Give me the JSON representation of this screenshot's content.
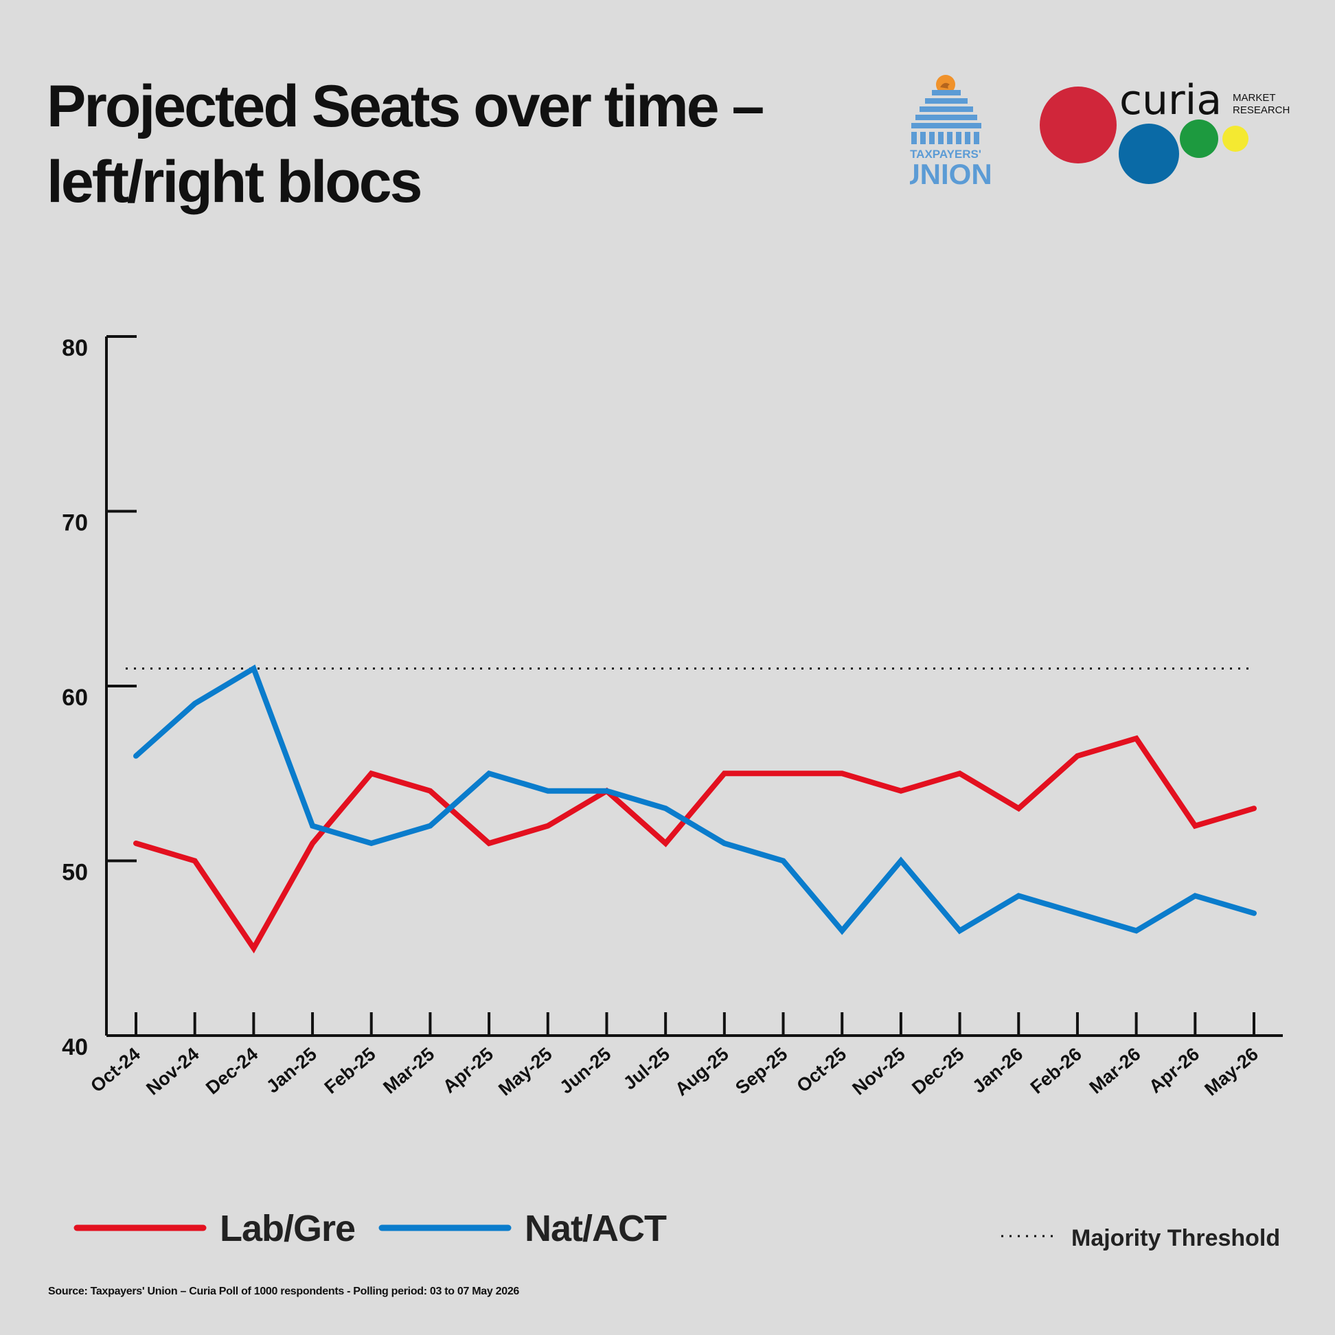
{
  "header": {
    "title_line1": "Projected Seats over time –",
    "title_line2": "left/right blocs"
  },
  "logos": {
    "taxpayers_union": {
      "line1": "TAXPAYERS'",
      "line2": "UNION",
      "color": "#5b9bd5",
      "accent": "#f0922b"
    },
    "curia": {
      "name": "curia",
      "line1": "MARKET",
      "line2": "RESEARCH",
      "dot_colors": [
        "#d0263a",
        "#0a6aa6",
        "#1d9a3f",
        "#f4e931"
      ]
    }
  },
  "chart_data": {
    "type": "line",
    "categories": [
      "Oct-24",
      "Nov-24",
      "Dec-24",
      "Jan-25",
      "Feb-25",
      "Mar-25",
      "Apr-25",
      "May-25",
      "Jun-25",
      "Jul-25",
      "Aug-25",
      "Sep-25",
      "Oct-25",
      "Nov-25",
      "Dec-25",
      "Jan-26",
      "Feb-26",
      "Mar-26",
      "Apr-26",
      "May-26"
    ],
    "series": [
      {
        "name": "Lab/Gre",
        "color": "#e3101f",
        "values": [
          51,
          50,
          45,
          51,
          55,
          54,
          51,
          52,
          54,
          51,
          55,
          55,
          55,
          54,
          55,
          53,
          56,
          57,
          52,
          53
        ]
      },
      {
        "name": "Nat/ACT",
        "color": "#0a7ccc",
        "values": [
          56,
          59,
          61,
          52,
          51,
          52,
          55,
          54,
          54,
          53,
          51,
          50,
          46,
          50,
          46,
          48,
          47,
          46,
          48,
          47
        ]
      }
    ],
    "threshold": {
      "name": "Majority Threshold",
      "value": 61,
      "style": "dotted"
    },
    "ylim": [
      40,
      80
    ],
    "yticks": [
      40,
      50,
      60,
      70,
      80
    ],
    "xlabel": "",
    "ylabel": "",
    "grid": false,
    "legend_position": "bottom"
  },
  "footer": {
    "source": "Source: Taxpayers' Union – Curia Poll of 1000 respondents - Polling period: 03 to 07 May 2026"
  }
}
